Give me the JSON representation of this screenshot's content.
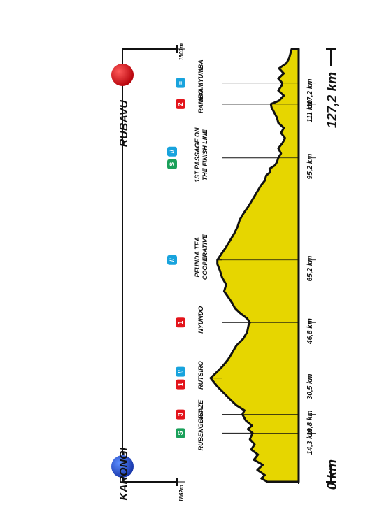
{
  "start": {
    "town": "KARONGI",
    "altitude": "1862m",
    "km_label": "0 km",
    "color": "#1e4fc4"
  },
  "finish": {
    "town": "RUBAVU",
    "altitude": "1503m",
    "km_label": "127,2 km",
    "color": "#e3141b"
  },
  "colors": {
    "fill": "#e6d600",
    "outline": "#111111",
    "sprint": "#1aa05a",
    "climb": "#e3141b",
    "feed": "#18a3dd"
  },
  "chart_data": {
    "type": "area",
    "title": "",
    "xlabel": "",
    "ylabel": "",
    "x_unit": "km",
    "y_unit": "m",
    "xlim": [
      0,
      127.2
    ],
    "profile": [
      [
        0,
        1862
      ],
      [
        1,
        1950
      ],
      [
        2,
        1900
      ],
      [
        3.5,
        2010
      ],
      [
        5,
        1930
      ],
      [
        6.5,
        2060
      ],
      [
        8,
        2000
      ],
      [
        9.5,
        2100
      ],
      [
        11,
        2050
      ],
      [
        12.5,
        2120
      ],
      [
        14.3,
        2080
      ],
      [
        15.5,
        2150
      ],
      [
        16.5,
        2090
      ],
      [
        18,
        2180
      ],
      [
        19.8,
        2230
      ],
      [
        21,
        2200
      ],
      [
        22.5,
        2320
      ],
      [
        24,
        2400
      ],
      [
        26,
        2500
      ],
      [
        28,
        2600
      ],
      [
        30.5,
        2700
      ],
      [
        32,
        2620
      ],
      [
        34,
        2520
      ],
      [
        36,
        2440
      ],
      [
        38,
        2380
      ],
      [
        40,
        2320
      ],
      [
        42,
        2220
      ],
      [
        44,
        2160
      ],
      [
        46,
        2140
      ],
      [
        46.8,
        2120
      ],
      [
        48,
        2160
      ],
      [
        49.5,
        2260
      ],
      [
        51,
        2340
      ],
      [
        52.5,
        2380
      ],
      [
        54,
        2430
      ],
      [
        56,
        2500
      ],
      [
        58,
        2470
      ],
      [
        60,
        2530
      ],
      [
        62,
        2560
      ],
      [
        64,
        2600
      ],
      [
        65.2,
        2600
      ],
      [
        67,
        2540
      ],
      [
        69,
        2470
      ],
      [
        71,
        2410
      ],
      [
        73,
        2350
      ],
      [
        75,
        2300
      ],
      [
        77,
        2270
      ],
      [
        79,
        2210
      ],
      [
        81,
        2140
      ],
      [
        83,
        2080
      ],
      [
        85,
        2020
      ],
      [
        87,
        1960
      ],
      [
        88.5,
        1900
      ],
      [
        90,
        1880
      ],
      [
        91,
        1820
      ],
      [
        92,
        1830
      ],
      [
        93,
        1750
      ],
      [
        94,
        1720
      ],
      [
        95.2,
        1700
      ],
      [
        96.5,
        1660
      ],
      [
        98,
        1700
      ],
      [
        99.5,
        1640
      ],
      [
        101,
        1600
      ],
      [
        102.5,
        1660
      ],
      [
        104,
        1620
      ],
      [
        105.5,
        1700
      ],
      [
        107,
        1720
      ],
      [
        108.5,
        1760
      ],
      [
        110,
        1800
      ],
      [
        111,
        1810
      ],
      [
        112,
        1690
      ],
      [
        113.5,
        1620
      ],
      [
        115,
        1700
      ],
      [
        116.5,
        1650
      ],
      [
        117.2,
        1640
      ],
      [
        118.5,
        1700
      ],
      [
        120,
        1620
      ],
      [
        121.5,
        1690
      ],
      [
        123,
        1580
      ],
      [
        124.5,
        1540
      ],
      [
        126,
        1520
      ],
      [
        127.2,
        1503
      ]
    ],
    "km_markers": [
      {
        "km": 14.3,
        "label": "14,3 km"
      },
      {
        "km": 19.8,
        "label": "19,8 km"
      },
      {
        "km": 30.5,
        "label": "30,5 km"
      },
      {
        "km": 46.8,
        "label": "46,8 km"
      },
      {
        "km": 65.2,
        "label": "65,2 km"
      },
      {
        "km": 95.2,
        "label": "95,2 km"
      },
      {
        "km": 111,
        "label": "111 km"
      },
      {
        "km": 117.2,
        "label": "117,2 km"
      }
    ],
    "points": [
      {
        "km": 14.3,
        "name": "RUBENGERA",
        "icons": [
          {
            "type": "sprint",
            "text": "S"
          }
        ]
      },
      {
        "km": 19.8,
        "name": "GISAZE",
        "icons": [
          {
            "type": "climb",
            "text": "3"
          }
        ]
      },
      {
        "km": 30.5,
        "name": "RUTSIRO",
        "icons": [
          {
            "type": "climb",
            "text": "1"
          },
          {
            "type": "feed",
            "text": "//"
          }
        ]
      },
      {
        "km": 46.8,
        "name": "NYUNDO",
        "icons": [
          {
            "type": "climb",
            "text": "1"
          }
        ]
      },
      {
        "km": 65.2,
        "name": "PFUNDA TEA|COOPERATIVE",
        "icons": [
          {
            "type": "feed",
            "text": "//"
          }
        ]
      },
      {
        "km": 95.2,
        "name": "1ST PASSAGE ON|THE FINISH LINE",
        "icons": [
          {
            "type": "sprint",
            "text": "S"
          },
          {
            "type": "feed",
            "text": "//"
          }
        ]
      },
      {
        "km": 111,
        "name": "RAMBO",
        "icons": [
          {
            "type": "climb",
            "text": "2"
          }
        ]
      },
      {
        "km": 117.2,
        "name": "NYAMYUMBA",
        "icons": [
          {
            "type": "feed",
            "text": "≡"
          }
        ]
      }
    ]
  }
}
